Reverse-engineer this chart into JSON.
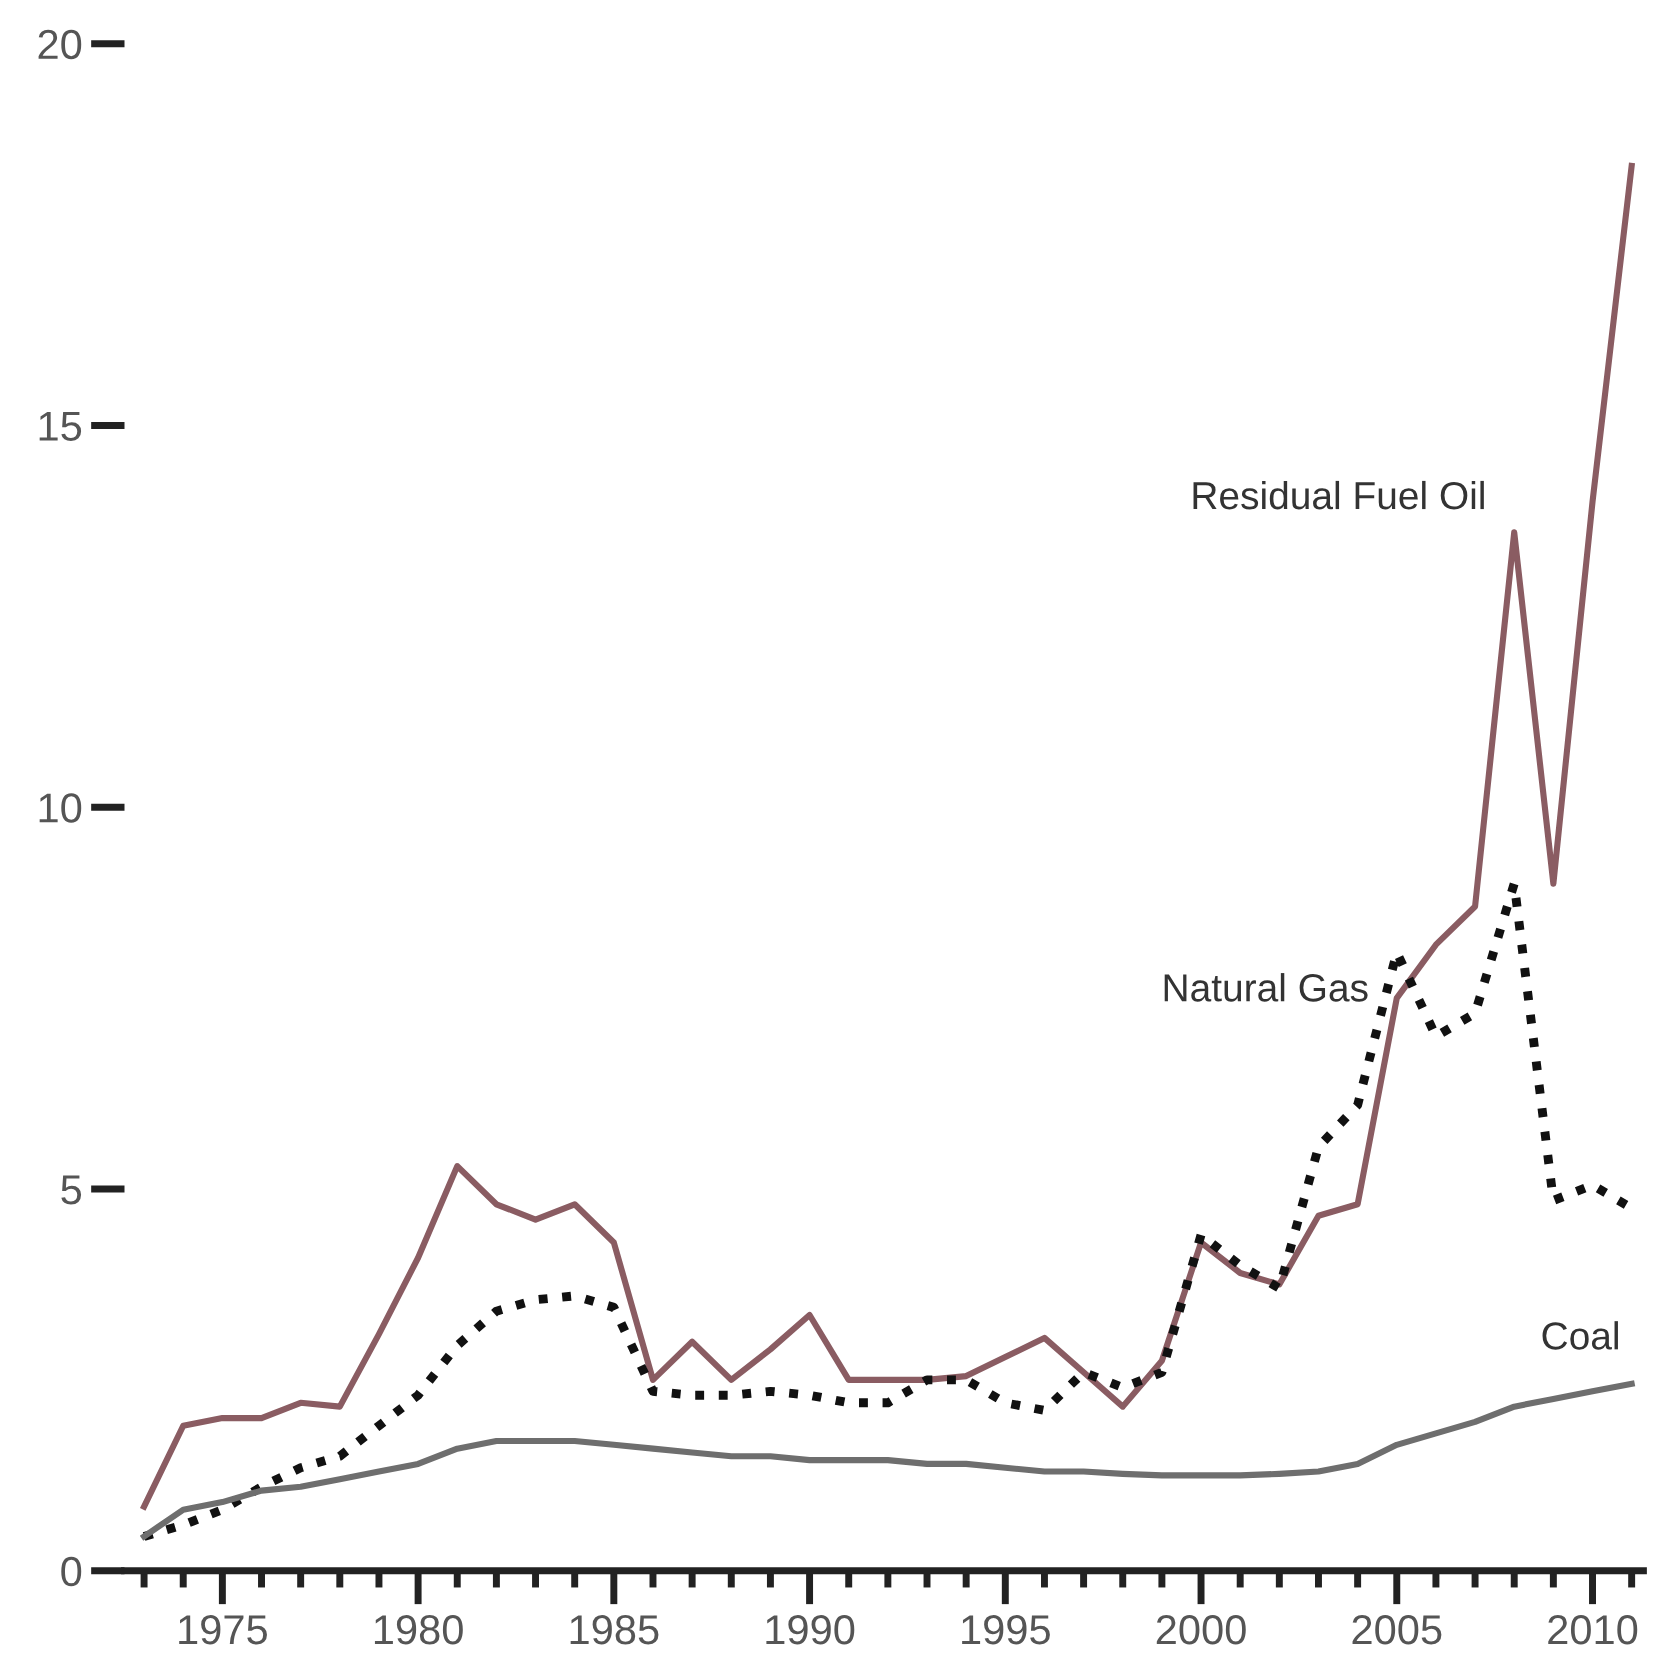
{
  "chart_data": {
    "type": "line",
    "x": [
      1973,
      1974,
      1975,
      1976,
      1977,
      1978,
      1979,
      1980,
      1981,
      1982,
      1983,
      1984,
      1985,
      1986,
      1987,
      1988,
      1989,
      1990,
      1991,
      1992,
      1993,
      1994,
      1995,
      1996,
      1997,
      1998,
      1999,
      2000,
      2001,
      2002,
      2003,
      2004,
      2005,
      2006,
      2007,
      2008,
      2009,
      2010,
      2011
    ],
    "series": [
      {
        "name": "Residual Fuel Oil",
        "color": "#8a5c62",
        "line_style": "solid",
        "values": [
          0.84,
          1.9,
          2.0,
          2.0,
          2.2,
          2.15,
          3.1,
          4.1,
          5.3,
          4.8,
          4.6,
          4.8,
          4.3,
          2.5,
          3.0,
          2.5,
          2.9,
          3.35,
          2.5,
          2.5,
          2.5,
          2.55,
          2.8,
          3.05,
          2.6,
          2.15,
          2.75,
          4.3,
          3.9,
          3.75,
          4.65,
          4.8,
          7.5,
          8.2,
          8.7,
          13.6,
          9.0,
          14.0,
          18.4
        ]
      },
      {
        "name": "Natural Gas",
        "color": "#111111",
        "line_style": "dotted",
        "values": [
          0.45,
          0.6,
          0.8,
          1.1,
          1.35,
          1.5,
          1.9,
          2.3,
          2.95,
          3.4,
          3.55,
          3.6,
          3.45,
          2.35,
          2.3,
          2.3,
          2.35,
          2.3,
          2.2,
          2.2,
          2.5,
          2.5,
          2.2,
          2.1,
          2.6,
          2.4,
          2.6,
          4.4,
          4.0,
          3.7,
          5.55,
          6.1,
          8.1,
          7.0,
          7.3,
          9.0,
          4.85,
          5.05,
          4.75
        ]
      },
      {
        "name": "Coal",
        "color": "#6e6e6e",
        "line_style": "solid",
        "values": [
          0.45,
          0.8,
          0.9,
          1.05,
          1.1,
          1.2,
          1.3,
          1.4,
          1.6,
          1.7,
          1.7,
          1.7,
          1.65,
          1.6,
          1.55,
          1.5,
          1.5,
          1.45,
          1.45,
          1.45,
          1.4,
          1.4,
          1.35,
          1.3,
          1.3,
          1.27,
          1.25,
          1.25,
          1.25,
          1.27,
          1.3,
          1.4,
          1.65,
          1.8,
          1.95,
          2.15,
          2.25,
          2.35,
          2.45
        ]
      }
    ],
    "xlim": [
      1972.5,
      2011.3
    ],
    "xticks": [
      {
        "value": 1973,
        "label": null
      },
      {
        "value": 1974,
        "label": null
      },
      1975,
      {
        "value": 1976,
        "label": null
      },
      {
        "value": 1977,
        "label": null
      },
      {
        "value": 1978,
        "label": null
      },
      {
        "value": 1979,
        "label": null
      },
      1980,
      {
        "value": 1981,
        "label": null
      },
      {
        "value": 1982,
        "label": null
      },
      {
        "value": 1983,
        "label": null
      },
      {
        "value": 1984,
        "label": null
      },
      1985,
      {
        "value": 1986,
        "label": null
      },
      {
        "value": 1987,
        "label": null
      },
      {
        "value": 1988,
        "label": null
      },
      {
        "value": 1989,
        "label": null
      },
      1990,
      {
        "value": 1991,
        "label": null
      },
      {
        "value": 1992,
        "label": null
      },
      {
        "value": 1993,
        "label": null
      },
      {
        "value": 1994,
        "label": null
      },
      1995,
      {
        "value": 1996,
        "label": null
      },
      {
        "value": 1997,
        "label": null
      },
      {
        "value": 1998,
        "label": null
      },
      {
        "value": 1999,
        "label": null
      },
      2000,
      {
        "value": 2001,
        "label": null
      },
      {
        "value": 2002,
        "label": null
      },
      {
        "value": 2003,
        "label": null
      },
      {
        "value": 2004,
        "label": null
      },
      2005,
      {
        "value": 2006,
        "label": null
      },
      {
        "value": 2007,
        "label": null
      },
      {
        "value": 2008,
        "label": null
      },
      {
        "value": 2009,
        "label": null
      },
      2010,
      {
        "value": 2011,
        "label": null
      }
    ],
    "ylim": [
      0,
      20
    ],
    "yticks": [
      0,
      5,
      10,
      15,
      20
    ],
    "grid": false,
    "legend": false,
    "marker": "none"
  }
}
